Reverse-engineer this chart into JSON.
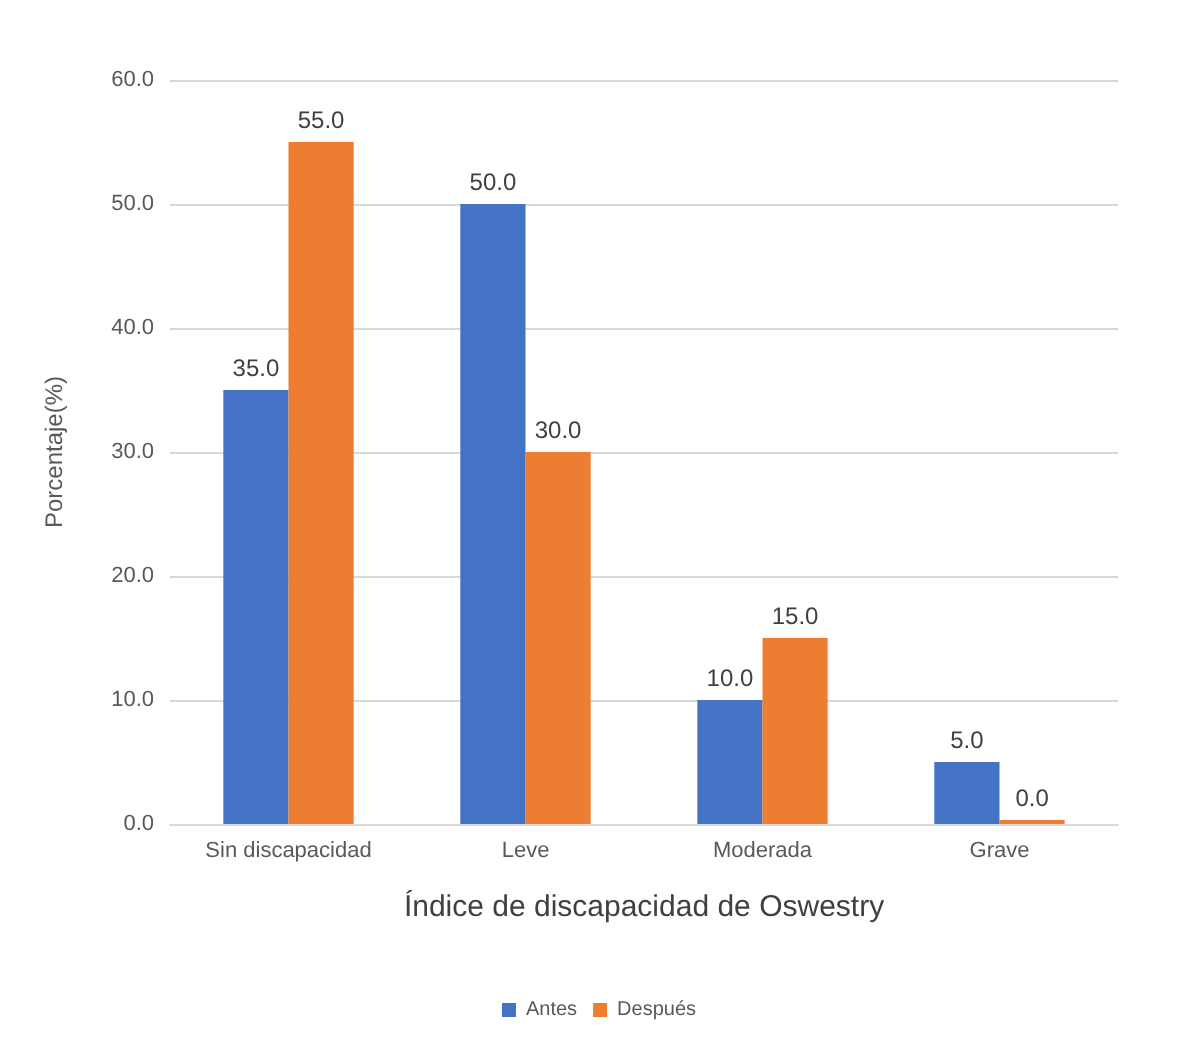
{
  "chart_data": {
    "type": "bar",
    "xlabel": "Índice de discapacidad de Oswestry",
    "ylabel": "Porcentaje(%)",
    "categories": [
      "Sin discapacidad",
      "Leve",
      "Moderada",
      "Grave"
    ],
    "series": [
      {
        "name": "Antes",
        "color": "#4472c4",
        "values": [
          35,
          50,
          10,
          5
        ],
        "value_labels": [
          "35.0",
          "50.0",
          "10.0",
          "5.0"
        ]
      },
      {
        "name": "Después",
        "color": "#ed7d31",
        "values": [
          55,
          30,
          15,
          0
        ],
        "value_labels": [
          "55.0",
          "30.0",
          "15.0",
          "0.0"
        ]
      }
    ],
    "ylim": [
      0,
      60
    ],
    "yticks": [
      {
        "value": 0,
        "label": "0.0"
      },
      {
        "value": 10,
        "label": "10.0"
      },
      {
        "value": 20,
        "label": "20.0"
      },
      {
        "value": 30,
        "label": "30.0"
      },
      {
        "value": 40,
        "label": "40.0"
      },
      {
        "value": 50,
        "label": "50.0"
      },
      {
        "value": 60,
        "label": "60.0"
      }
    ],
    "grid": "y",
    "legend": "bottom"
  }
}
